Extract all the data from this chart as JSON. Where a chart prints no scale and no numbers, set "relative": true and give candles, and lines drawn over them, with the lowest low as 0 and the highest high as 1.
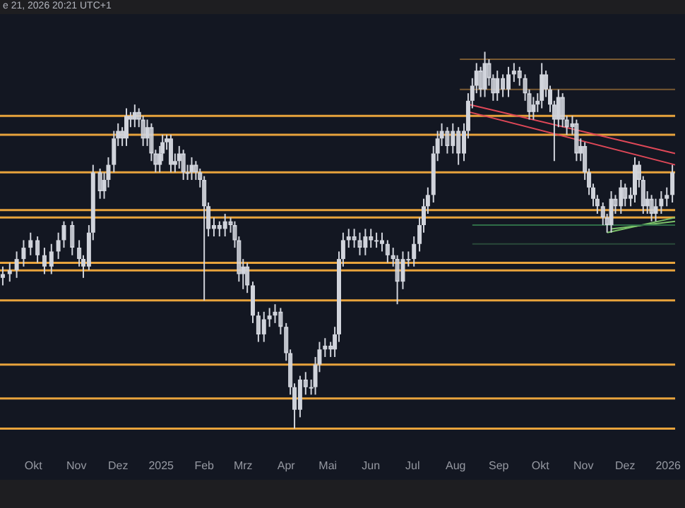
{
  "chart_data": {
    "type": "candlestick",
    "relative": true,
    "color": "#d1d4dc",
    "grid": false,
    "legend": false,
    "tick_labels": "x",
    "annotations": [
      "e 21, 2026 20:21 UTC+1"
    ],
    "xlim": [
      "2024-09-07",
      "2026-01-06"
    ],
    "xticks": [
      {
        "value": "2024-10-01",
        "label": "Okt"
      },
      {
        "value": "2024-11-01",
        "label": "Nov"
      },
      {
        "value": "2024-12-01",
        "label": "Dez"
      },
      {
        "value": "2025-01-01",
        "label": "2025"
      },
      {
        "value": "2025-02-01",
        "label": "Feb"
      },
      {
        "value": "2025-03-01",
        "label": "Mrz"
      },
      {
        "value": "2025-04-01",
        "label": "Apr"
      },
      {
        "value": "2025-05-01",
        "label": "Mai"
      },
      {
        "value": "2025-06-01",
        "label": "Jun"
      },
      {
        "value": "2025-07-01",
        "label": "Jul"
      },
      {
        "value": "2025-08-01",
        "label": "Aug"
      },
      {
        "value": "2025-09-01",
        "label": "Sep"
      },
      {
        "value": "2025-10-01",
        "label": "Okt"
      },
      {
        "value": "2025-11-01",
        "label": "Nov"
      },
      {
        "value": "2025-12-01",
        "label": "Dez"
      },
      {
        "value": "2026-01-01",
        "label": "2026"
      }
    ],
    "x": [
      "2024-09-09",
      "2024-09-14",
      "2024-09-19",
      "2024-09-24",
      "2024-09-29",
      "2024-10-04",
      "2024-10-09",
      "2024-10-14",
      "2024-10-19",
      "2024-10-23",
      "2024-10-29",
      "2024-11-03",
      "2024-11-06",
      "2024-11-10",
      "2024-11-13",
      "2024-11-18",
      "2024-11-21",
      "2024-11-24",
      "2024-11-28",
      "2024-12-01",
      "2024-12-04",
      "2024-12-07",
      "2024-12-10",
      "2024-12-13",
      "2024-12-16",
      "2024-12-19",
      "2024-12-22",
      "2024-12-25",
      "2024-12-28",
      "2024-12-31",
      "2025-01-02",
      "2025-01-05",
      "2025-01-08",
      "2025-01-11",
      "2025-01-14",
      "2025-01-17",
      "2025-01-20",
      "2025-01-23",
      "2025-01-26",
      "2025-01-29",
      "2025-02-01",
      "2025-02-04",
      "2025-02-08",
      "2025-02-12",
      "2025-02-16",
      "2025-02-20",
      "2025-02-23",
      "2025-02-26",
      "2025-03-01",
      "2025-03-04",
      "2025-03-08",
      "2025-03-12",
      "2025-03-16",
      "2025-03-20",
      "2025-03-24",
      "2025-03-28",
      "2025-04-01",
      "2025-04-04",
      "2025-04-07",
      "2025-04-11",
      "2025-04-15",
      "2025-04-19",
      "2025-04-22",
      "2025-04-25",
      "2025-04-29",
      "2025-05-03",
      "2025-05-06",
      "2025-05-09",
      "2025-05-12",
      "2025-05-16",
      "2025-05-20",
      "2025-05-24",
      "2025-05-28",
      "2025-06-01",
      "2025-06-05",
      "2025-06-09",
      "2025-06-13",
      "2025-06-17",
      "2025-06-20",
      "2025-06-24",
      "2025-06-28",
      "2025-07-02",
      "2025-07-06",
      "2025-07-09",
      "2025-07-12",
      "2025-07-16",
      "2025-07-19",
      "2025-07-22",
      "2025-07-26",
      "2025-07-30",
      "2025-08-03",
      "2025-08-07",
      "2025-08-10",
      "2025-08-13",
      "2025-08-16",
      "2025-08-19",
      "2025-08-22",
      "2025-08-25",
      "2025-08-28",
      "2025-08-31",
      "2025-09-04",
      "2025-09-08",
      "2025-09-12",
      "2025-09-16",
      "2025-09-20",
      "2025-09-23",
      "2025-09-26",
      "2025-09-29",
      "2025-10-02",
      "2025-10-05",
      "2025-10-08",
      "2025-10-11",
      "2025-10-14",
      "2025-10-17",
      "2025-10-20",
      "2025-10-24",
      "2025-10-27",
      "2025-10-30",
      "2025-11-02",
      "2025-11-05",
      "2025-11-08",
      "2025-11-11",
      "2025-11-15",
      "2025-11-18",
      "2025-11-21",
      "2025-11-24",
      "2025-11-28",
      "2025-12-01",
      "2025-12-05",
      "2025-12-08",
      "2025-12-11",
      "2025-12-14",
      "2025-12-17",
      "2025-12-20",
      "2025-12-23",
      "2025-12-27",
      "2025-12-31",
      "2026-01-04"
    ],
    "ohlc": [
      [
        0.4,
        0.43,
        0.38,
        0.41
      ],
      [
        0.41,
        0.44,
        0.39,
        0.42
      ],
      [
        0.42,
        0.47,
        0.4,
        0.45
      ],
      [
        0.45,
        0.5,
        0.43,
        0.48
      ],
      [
        0.48,
        0.52,
        0.46,
        0.5
      ],
      [
        0.5,
        0.51,
        0.44,
        0.46
      ],
      [
        0.46,
        0.48,
        0.41,
        0.43
      ],
      [
        0.43,
        0.49,
        0.41,
        0.47
      ],
      [
        0.47,
        0.52,
        0.45,
        0.5
      ],
      [
        0.5,
        0.55,
        0.48,
        0.54
      ],
      [
        0.54,
        0.55,
        0.46,
        0.48
      ],
      [
        0.48,
        0.5,
        0.43,
        0.45
      ],
      [
        0.45,
        0.46,
        0.4,
        0.43
      ],
      [
        0.43,
        0.54,
        0.42,
        0.52
      ],
      [
        0.52,
        0.7,
        0.5,
        0.68
      ],
      [
        0.68,
        0.69,
        0.61,
        0.63
      ],
      [
        0.63,
        0.68,
        0.61,
        0.66
      ],
      [
        0.66,
        0.72,
        0.64,
        0.7
      ],
      [
        0.7,
        0.79,
        0.68,
        0.77
      ],
      [
        0.77,
        0.81,
        0.75,
        0.79
      ],
      [
        0.79,
        0.8,
        0.75,
        0.77
      ],
      [
        0.77,
        0.85,
        0.75,
        0.83
      ],
      [
        0.83,
        0.84,
        0.8,
        0.82
      ],
      [
        0.82,
        0.86,
        0.8,
        0.84
      ],
      [
        0.84,
        0.85,
        0.8,
        0.82
      ],
      [
        0.82,
        0.83,
        0.75,
        0.77
      ],
      [
        0.77,
        0.82,
        0.75,
        0.8
      ],
      [
        0.8,
        0.81,
        0.71,
        0.73
      ],
      [
        0.73,
        0.74,
        0.68,
        0.7
      ],
      [
        0.7,
        0.75,
        0.68,
        0.73
      ],
      [
        0.73,
        0.78,
        0.71,
        0.76
      ],
      [
        0.76,
        0.78,
        0.74,
        0.77
      ],
      [
        0.77,
        0.78,
        0.68,
        0.7
      ],
      [
        0.7,
        0.73,
        0.68,
        0.71
      ],
      [
        0.71,
        0.75,
        0.69,
        0.73
      ],
      [
        0.73,
        0.74,
        0.66,
        0.68
      ],
      [
        0.68,
        0.7,
        0.66,
        0.68
      ],
      [
        0.68,
        0.72,
        0.66,
        0.7
      ],
      [
        0.7,
        0.71,
        0.66,
        0.68
      ],
      [
        0.68,
        0.69,
        0.64,
        0.66
      ],
      [
        0.66,
        0.67,
        0.34,
        0.59
      ],
      [
        0.59,
        0.6,
        0.51,
        0.53
      ],
      [
        0.53,
        0.56,
        0.51,
        0.54
      ],
      [
        0.54,
        0.55,
        0.51,
        0.53
      ],
      [
        0.53,
        0.57,
        0.51,
        0.55
      ],
      [
        0.55,
        0.56,
        0.52,
        0.54
      ],
      [
        0.54,
        0.55,
        0.48,
        0.5
      ],
      [
        0.5,
        0.51,
        0.39,
        0.41
      ],
      [
        0.41,
        0.45,
        0.37,
        0.43
      ],
      [
        0.43,
        0.44,
        0.36,
        0.38
      ],
      [
        0.38,
        0.39,
        0.28,
        0.3
      ],
      [
        0.3,
        0.31,
        0.23,
        0.25
      ],
      [
        0.25,
        0.31,
        0.23,
        0.29
      ],
      [
        0.29,
        0.32,
        0.27,
        0.3
      ],
      [
        0.3,
        0.33,
        0.28,
        0.31
      ],
      [
        0.31,
        0.32,
        0.25,
        0.27
      ],
      [
        0.27,
        0.28,
        0.18,
        0.2
      ],
      [
        0.2,
        0.21,
        0.09,
        0.11
      ],
      [
        0.11,
        0.12,
        0.0,
        0.05
      ],
      [
        0.05,
        0.14,
        0.03,
        0.13
      ],
      [
        0.13,
        0.15,
        0.09,
        0.11
      ],
      [
        0.11,
        0.13,
        0.09,
        0.11
      ],
      [
        0.11,
        0.19,
        0.09,
        0.17
      ],
      [
        0.17,
        0.23,
        0.15,
        0.21
      ],
      [
        0.21,
        0.24,
        0.19,
        0.22
      ],
      [
        0.22,
        0.23,
        0.19,
        0.21
      ],
      [
        0.21,
        0.27,
        0.19,
        0.25
      ],
      [
        0.25,
        0.47,
        0.23,
        0.45
      ],
      [
        0.45,
        0.52,
        0.43,
        0.5
      ],
      [
        0.5,
        0.53,
        0.48,
        0.51
      ],
      [
        0.51,
        0.53,
        0.48,
        0.5
      ],
      [
        0.5,
        0.52,
        0.46,
        0.48
      ],
      [
        0.48,
        0.53,
        0.46,
        0.51
      ],
      [
        0.51,
        0.53,
        0.48,
        0.5
      ],
      [
        0.5,
        0.52,
        0.48,
        0.5
      ],
      [
        0.5,
        0.52,
        0.47,
        0.49
      ],
      [
        0.49,
        0.5,
        0.44,
        0.46
      ],
      [
        0.46,
        0.48,
        0.43,
        0.45
      ],
      [
        0.45,
        0.46,
        0.33,
        0.39
      ],
      [
        0.39,
        0.47,
        0.37,
        0.45
      ],
      [
        0.45,
        0.47,
        0.43,
        0.45
      ],
      [
        0.45,
        0.51,
        0.43,
        0.49
      ],
      [
        0.49,
        0.56,
        0.47,
        0.54
      ],
      [
        0.54,
        0.61,
        0.52,
        0.59
      ],
      [
        0.59,
        0.64,
        0.57,
        0.62
      ],
      [
        0.62,
        0.75,
        0.6,
        0.73
      ],
      [
        0.73,
        0.79,
        0.71,
        0.77
      ],
      [
        0.77,
        0.81,
        0.75,
        0.79
      ],
      [
        0.79,
        0.8,
        0.73,
        0.75
      ],
      [
        0.75,
        0.81,
        0.73,
        0.79
      ],
      [
        0.79,
        0.8,
        0.7,
        0.73
      ],
      [
        0.73,
        0.81,
        0.71,
        0.79
      ],
      [
        0.79,
        0.89,
        0.77,
        0.87
      ],
      [
        0.87,
        0.93,
        0.85,
        0.91
      ],
      [
        0.91,
        0.97,
        0.89,
        0.95
      ],
      [
        0.95,
        0.96,
        0.88,
        0.9
      ],
      [
        0.9,
        1.0,
        0.88,
        0.97
      ],
      [
        0.97,
        0.98,
        0.91,
        0.93
      ],
      [
        0.93,
        0.94,
        0.87,
        0.89
      ],
      [
        0.89,
        0.95,
        0.87,
        0.93
      ],
      [
        0.93,
        0.94,
        0.88,
        0.9
      ],
      [
        0.9,
        0.96,
        0.88,
        0.94
      ],
      [
        0.94,
        0.97,
        0.92,
        0.95
      ],
      [
        0.95,
        0.96,
        0.91,
        0.93
      ],
      [
        0.93,
        0.94,
        0.87,
        0.89
      ],
      [
        0.89,
        0.9,
        0.82,
        0.84
      ],
      [
        0.84,
        0.88,
        0.82,
        0.86
      ],
      [
        0.86,
        0.89,
        0.84,
        0.87
      ],
      [
        0.87,
        0.97,
        0.85,
        0.94
      ],
      [
        0.94,
        0.95,
        0.88,
        0.9
      ],
      [
        0.9,
        0.91,
        0.84,
        0.86
      ],
      [
        0.86,
        0.87,
        0.71,
        0.82
      ],
      [
        0.82,
        0.9,
        0.8,
        0.88
      ],
      [
        0.88,
        0.89,
        0.8,
        0.82
      ],
      [
        0.82,
        0.83,
        0.78,
        0.8
      ],
      [
        0.8,
        0.83,
        0.78,
        0.81
      ],
      [
        0.81,
        0.82,
        0.71,
        0.73
      ],
      [
        0.73,
        0.77,
        0.71,
        0.75
      ],
      [
        0.75,
        0.76,
        0.66,
        0.68
      ],
      [
        0.68,
        0.69,
        0.62,
        0.64
      ],
      [
        0.64,
        0.65,
        0.59,
        0.61
      ],
      [
        0.61,
        0.62,
        0.57,
        0.59
      ],
      [
        0.59,
        0.6,
        0.54,
        0.56
      ],
      [
        0.56,
        0.57,
        0.52,
        0.54
      ],
      [
        0.54,
        0.63,
        0.52,
        0.61
      ],
      [
        0.61,
        0.62,
        0.57,
        0.59
      ],
      [
        0.59,
        0.66,
        0.57,
        0.64
      ],
      [
        0.64,
        0.65,
        0.59,
        0.61
      ],
      [
        0.61,
        0.64,
        0.59,
        0.62
      ],
      [
        0.62,
        0.72,
        0.6,
        0.7
      ],
      [
        0.7,
        0.71,
        0.64,
        0.66
      ],
      [
        0.66,
        0.67,
        0.57,
        0.59
      ],
      [
        0.59,
        0.63,
        0.57,
        0.61
      ],
      [
        0.61,
        0.62,
        0.55,
        0.57
      ],
      [
        0.57,
        0.61,
        0.55,
        0.59
      ],
      [
        0.59,
        0.63,
        0.57,
        0.61
      ],
      [
        0.61,
        0.64,
        0.59,
        0.62
      ],
      [
        0.62,
        0.7,
        0.6,
        0.68
      ]
    ],
    "ref_lines": [
      {
        "axis": "y",
        "value": 0.83,
        "color": "#e8a33c"
      },
      {
        "axis": "y",
        "value": 0.78,
        "color": "#e8a33c"
      },
      {
        "axis": "y",
        "value": 0.68,
        "color": "#e8a33c"
      },
      {
        "axis": "y",
        "value": 0.58,
        "color": "#e8a33c"
      },
      {
        "axis": "y",
        "value": 0.56,
        "color": "#e8a33c"
      },
      {
        "axis": "y",
        "value": 0.44,
        "color": "#e8a33c"
      },
      {
        "axis": "y",
        "value": 0.42,
        "color": "#e8a33c"
      },
      {
        "axis": "y",
        "value": 0.34,
        "color": "#e8a33c"
      },
      {
        "axis": "y",
        "value": 0.17,
        "color": "#e8a33c"
      },
      {
        "axis": "y",
        "value": 0.08,
        "color": "#e8a33c"
      },
      {
        "axis": "y",
        "value": 0.0,
        "color": "#e8a33c"
      }
    ],
    "series": [
      {
        "type": "line",
        "color": "#7a5a32",
        "x": [
          "2025-08-04",
          "2026-01-06"
        ],
        "values": [
          0.98,
          0.98
        ]
      },
      {
        "type": "line",
        "color": "#7a5a32",
        "x": [
          "2025-08-04",
          "2026-01-06"
        ],
        "values": [
          0.9,
          0.9
        ]
      },
      {
        "type": "line",
        "color": "#2f6e48",
        "x": [
          "2025-08-13",
          "2026-01-06"
        ],
        "values": [
          0.54,
          0.54
        ]
      },
      {
        "type": "line",
        "color": "#2a4a3a",
        "x": [
          "2025-08-13",
          "2026-01-06"
        ],
        "values": [
          0.49,
          0.49
        ]
      },
      {
        "type": "line",
        "color": "#e04858",
        "x": [
          "2025-08-11",
          "2026-01-06"
        ],
        "values": [
          0.86,
          0.73
        ]
      },
      {
        "type": "line",
        "color": "#e04858",
        "x": [
          "2025-08-11",
          "2026-01-06"
        ],
        "values": [
          0.84,
          0.7
        ]
      },
      {
        "type": "line",
        "color": "#7cc36a",
        "x": [
          "2025-11-18",
          "2026-01-06"
        ],
        "values": [
          0.52,
          0.56
        ]
      },
      {
        "type": "line",
        "color": "#7cc36a",
        "x": [
          "2025-11-21",
          "2026-01-06"
        ],
        "values": [
          0.53,
          0.55
        ]
      }
    ]
  }
}
